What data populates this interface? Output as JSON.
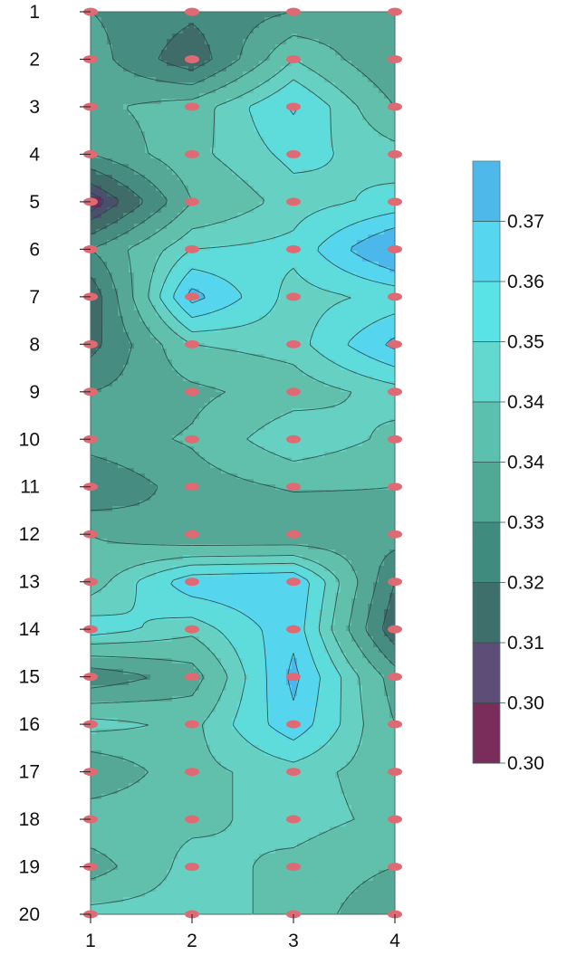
{
  "chart_data": {
    "type": "contour",
    "x_ticks": [
      "1",
      "2",
      "3",
      "4"
    ],
    "y_ticks": [
      "1",
      "2",
      "3",
      "4",
      "5",
      "6",
      "7",
      "8",
      "9",
      "10",
      "11",
      "12",
      "13",
      "14",
      "15",
      "16",
      "17",
      "18",
      "19",
      "20"
    ],
    "xlim": [
      1,
      4
    ],
    "ylim": [
      1,
      20
    ],
    "y_inverted": true,
    "grid": false,
    "colorbar": {
      "labels": [
        "0.37",
        "0.36",
        "0.35",
        "0.34",
        "0.34",
        "0.33",
        "0.32",
        "0.31",
        "0.30",
        "0.30"
      ],
      "band_colors": [
        "#4fb8ea",
        "#56d7ef",
        "#5ae3e6",
        "#62d8cf",
        "#5bc0ad",
        "#4fa995",
        "#3f8b7e",
        "#3f6f6a",
        "#5e4d76",
        "#7a2d5a"
      ]
    },
    "level_colors": [
      "#6b2d5f",
      "#4a4f6e",
      "#3f6c69",
      "#478c80",
      "#55a896",
      "#60c0ab",
      "#66d0c2",
      "#5edcdc",
      "#55d6ee",
      "#4cb7ea"
    ],
    "thresholds": [
      0.305,
      0.31,
      0.318,
      0.326,
      0.334,
      0.342,
      0.348,
      0.355,
      0.362
    ],
    "z": [
      [
        0.326,
        0.32,
        0.326,
        0.33
      ],
      [
        0.33,
        0.312,
        0.342,
        0.326
      ],
      [
        0.332,
        0.338,
        0.356,
        0.334
      ],
      [
        0.326,
        0.34,
        0.35,
        0.345
      ],
      [
        0.3,
        0.334,
        0.345,
        0.35
      ],
      [
        0.326,
        0.348,
        0.35,
        0.372
      ],
      [
        0.312,
        0.365,
        0.345,
        0.35
      ],
      [
        0.315,
        0.342,
        0.345,
        0.364
      ],
      [
        0.326,
        0.332,
        0.338,
        0.345
      ],
      [
        0.33,
        0.335,
        0.348,
        0.34
      ],
      [
        0.318,
        0.33,
        0.335,
        0.334
      ],
      [
        0.334,
        0.326,
        0.326,
        0.33
      ],
      [
        0.338,
        0.36,
        0.362,
        0.318
      ],
      [
        0.352,
        0.344,
        0.36,
        0.312
      ],
      [
        0.32,
        0.33,
        0.364,
        0.33
      ],
      [
        0.345,
        0.34,
        0.36,
        0.334
      ],
      [
        0.326,
        0.34,
        0.345,
        0.338
      ],
      [
        0.34,
        0.34,
        0.345,
        0.34
      ],
      [
        0.33,
        0.345,
        0.34,
        0.334
      ],
      [
        0.345,
        0.345,
        0.34,
        0.326
      ]
    ]
  }
}
